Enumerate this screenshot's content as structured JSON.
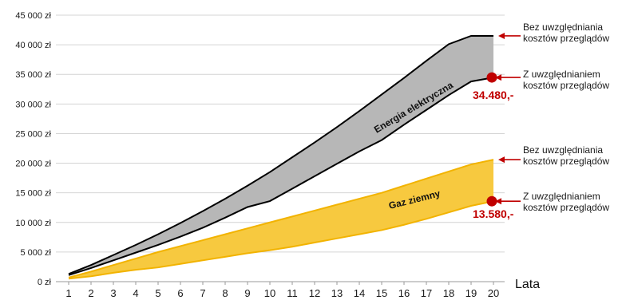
{
  "chart_data": {
    "type": "area",
    "x": [
      1,
      2,
      3,
      4,
      5,
      6,
      7,
      8,
      9,
      10,
      11,
      12,
      13,
      14,
      15,
      16,
      17,
      18,
      19,
      20
    ],
    "x_tick_labels": [
      "1",
      "2",
      "3",
      "4",
      "5",
      "6",
      "7",
      "8",
      "9",
      "10",
      "11",
      "12",
      "13",
      "14",
      "15",
      "16",
      "17",
      "18",
      "19",
      "20"
    ],
    "xlabel": "Lata",
    "ylabel": "",
    "ylim": [
      0,
      45000
    ],
    "y_tick_values": [
      0,
      5000,
      10000,
      15000,
      20000,
      25000,
      30000,
      35000,
      40000,
      45000
    ],
    "y_tick_labels": [
      "0 zł",
      "5 000 zł",
      "10 000 zł",
      "15 000 zł",
      "20 000 zł",
      "25 000 zł",
      "30 000 zł",
      "35 000 zł",
      "40 000 zł",
      "45 000 zł"
    ],
    "grid": "horizontal",
    "series": [
      {
        "name": "Energia elektryczna",
        "fill_color": "#b7b7b7",
        "line_color": "#000000",
        "upper": [
          1300,
          2800,
          4500,
          6200,
          8000,
          9900,
          11900,
          14000,
          16200,
          18500,
          21000,
          23500,
          26100,
          28800,
          31600,
          34400,
          37300,
          40100,
          41500,
          41500
        ],
        "lower": [
          1100,
          2300,
          3600,
          4900,
          6200,
          7600,
          9100,
          10800,
          12600,
          13600,
          15700,
          17800,
          19900,
          22000,
          23900,
          26500,
          29000,
          31500,
          33800,
          34480
        ],
        "end_value_label": "34.480,-",
        "end_value_color": "#c00000"
      },
      {
        "name": "Gaz ziemny",
        "fill_color": "#f7c93f",
        "line_color": "#f2b300",
        "upper": [
          700,
          1700,
          2800,
          3900,
          5000,
          6000,
          7000,
          8000,
          9000,
          10000,
          11000,
          12000,
          13000,
          14000,
          15000,
          16200,
          17400,
          18600,
          19800,
          20600
        ],
        "lower": [
          500,
          900,
          1500,
          2000,
          2400,
          3000,
          3600,
          4200,
          4800,
          5300,
          5900,
          6600,
          7300,
          8000,
          8700,
          9600,
          10600,
          11700,
          12800,
          13580
        ],
        "end_value_label": "13.580,-",
        "end_value_color": "#c00000"
      }
    ],
    "annotations": [
      {
        "text_lines": [
          "Bez uwzględniania",
          "kosztów przeglądów"
        ],
        "target_value": 41500,
        "marker": "arrow"
      },
      {
        "text_lines": [
          "Z uwzględnianiem",
          "kosztów przeglądów"
        ],
        "target_value": 34480,
        "marker": "dot"
      },
      {
        "text_lines": [
          "Bez uwzględniania",
          "kosztów przeglądów"
        ],
        "target_value": 20600,
        "marker": "arrow"
      },
      {
        "text_lines": [
          "Z uwzględnianiem",
          "kosztów przeglądów"
        ],
        "target_value": 13580,
        "marker": "dot"
      }
    ],
    "accent_color": "#c00000"
  }
}
